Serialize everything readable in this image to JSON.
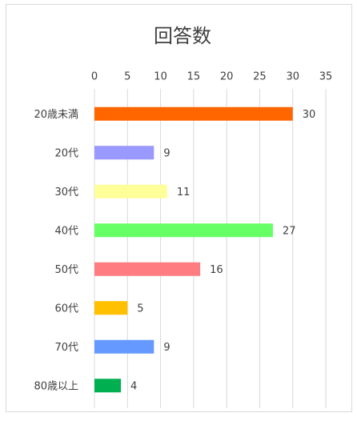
{
  "chart_data": {
    "type": "bar",
    "orientation": "horizontal",
    "title": "回答数",
    "categories": [
      "20歳未満",
      "20代",
      "30代",
      "40代",
      "50代",
      "60代",
      "70代",
      "80歳以上"
    ],
    "values": [
      30,
      9,
      11,
      27,
      16,
      5,
      9,
      4
    ],
    "colors": [
      "#ff6600",
      "#9999ff",
      "#ffff99",
      "#66ff66",
      "#ff7c80",
      "#ffc000",
      "#6699ff",
      "#00b050"
    ],
    "xlim": [
      0,
      35
    ],
    "xticks": [
      0,
      5,
      10,
      15,
      20,
      25,
      30,
      35
    ],
    "grid": true,
    "x_axis_position": "top"
  }
}
